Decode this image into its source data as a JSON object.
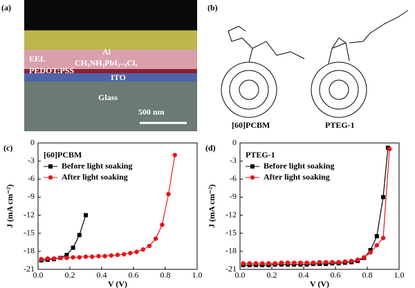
{
  "panel_a": {
    "label": "(a)",
    "layers": {
      "al": "Al",
      "eel": "EEL",
      "perovskite": "CH₃NH₃PbI₃₋ₓClₓ",
      "pedot": "PEDOT:PSS",
      "ito": "ITO",
      "glass": "Glass"
    },
    "scale_bar": "500 nm"
  },
  "panel_b": {
    "label": "(b)",
    "molecules": [
      "[60]PCBM",
      "PTEG-1"
    ]
  },
  "chart_data": [
    {
      "type": "line",
      "panel_label": "(c)",
      "legend_title": "[60]PCBM",
      "xlabel": "V (V)",
      "ylabel": "J (mA cm⁻²)",
      "xlim": [
        0,
        1.0
      ],
      "ylim": [
        -21,
        0
      ],
      "xticks": [
        {
          "value": 0,
          "label": "0.0"
        },
        0.2,
        0.4,
        0.6,
        0.8,
        {
          "value": 1,
          "label": "1.0"
        }
      ],
      "yticks": [
        0,
        -3,
        -6,
        -9,
        -12,
        -15,
        -18,
        -21
      ],
      "series": [
        {
          "name": "Before light soaking",
          "color": "#000000",
          "marker": "square",
          "x": [
            0.02,
            0.06,
            0.1,
            0.14,
            0.18,
            0.22,
            0.26,
            0.3
          ],
          "values": [
            -19.5,
            -19.4,
            -19.3,
            -19.1,
            -18.6,
            -17.4,
            -15.3,
            -12.0
          ]
        },
        {
          "name": "After light soaking",
          "color": "#e8141b",
          "marker": "circle",
          "x": [
            0.02,
            0.06,
            0.1,
            0.14,
            0.18,
            0.22,
            0.26,
            0.3,
            0.34,
            0.38,
            0.42,
            0.46,
            0.5,
            0.54,
            0.58,
            0.62,
            0.66,
            0.7,
            0.74,
            0.78,
            0.82,
            0.86
          ],
          "values": [
            -19.3,
            -19.2,
            -19.2,
            -19.1,
            -19.1,
            -19.0,
            -19.0,
            -18.9,
            -18.9,
            -18.8,
            -18.8,
            -18.7,
            -18.6,
            -18.5,
            -18.3,
            -18.1,
            -17.7,
            -17.1,
            -15.9,
            -13.6,
            -8.5,
            -2.0
          ]
        }
      ]
    },
    {
      "type": "line",
      "panel_label": "(d)",
      "legend_title": "PTEG-1",
      "xlabel": "V (V)",
      "ylabel": "J (mA cm⁻²)",
      "xlim": [
        0,
        1.0
      ],
      "ylim": [
        -21,
        0
      ],
      "xticks": [
        {
          "value": 0,
          "label": "0.0"
        },
        0.2,
        0.4,
        0.6,
        0.8,
        {
          "value": 1,
          "label": "1.0"
        }
      ],
      "yticks": [
        0,
        -3,
        -6,
        -9,
        -12,
        -15,
        -18,
        -21
      ],
      "series": [
        {
          "name": "Before light soaking",
          "color": "#000000",
          "marker": "square",
          "x": [
            0.02,
            0.06,
            0.1,
            0.14,
            0.18,
            0.22,
            0.26,
            0.3,
            0.34,
            0.38,
            0.42,
            0.46,
            0.5,
            0.54,
            0.58,
            0.62,
            0.66,
            0.7,
            0.74,
            0.78,
            0.82,
            0.86,
            0.9,
            0.93
          ],
          "values": [
            -20.3,
            -20.3,
            -20.3,
            -20.3,
            -20.3,
            -20.2,
            -20.2,
            -20.2,
            -20.2,
            -20.2,
            -20.2,
            -20.1,
            -20.1,
            -20.1,
            -20.0,
            -20.0,
            -19.9,
            -19.8,
            -19.6,
            -19.1,
            -17.8,
            -15.5,
            -9.0,
            -0.8
          ]
        },
        {
          "name": "After light soaking",
          "color": "#e8141b",
          "marker": "circle",
          "x": [
            0.02,
            0.06,
            0.1,
            0.14,
            0.18,
            0.22,
            0.26,
            0.3,
            0.34,
            0.38,
            0.42,
            0.46,
            0.5,
            0.54,
            0.58,
            0.62,
            0.66,
            0.7,
            0.74,
            0.78,
            0.82,
            0.86,
            0.9,
            0.94
          ],
          "values": [
            -20.0,
            -20.0,
            -20.0,
            -20.0,
            -20.0,
            -20.0,
            -19.9,
            -19.9,
            -19.9,
            -19.9,
            -19.9,
            -19.9,
            -19.8,
            -19.8,
            -19.8,
            -19.8,
            -19.7,
            -19.6,
            -19.4,
            -19.0,
            -18.2,
            -17.0,
            -15.8,
            -1.0
          ]
        }
      ]
    }
  ]
}
